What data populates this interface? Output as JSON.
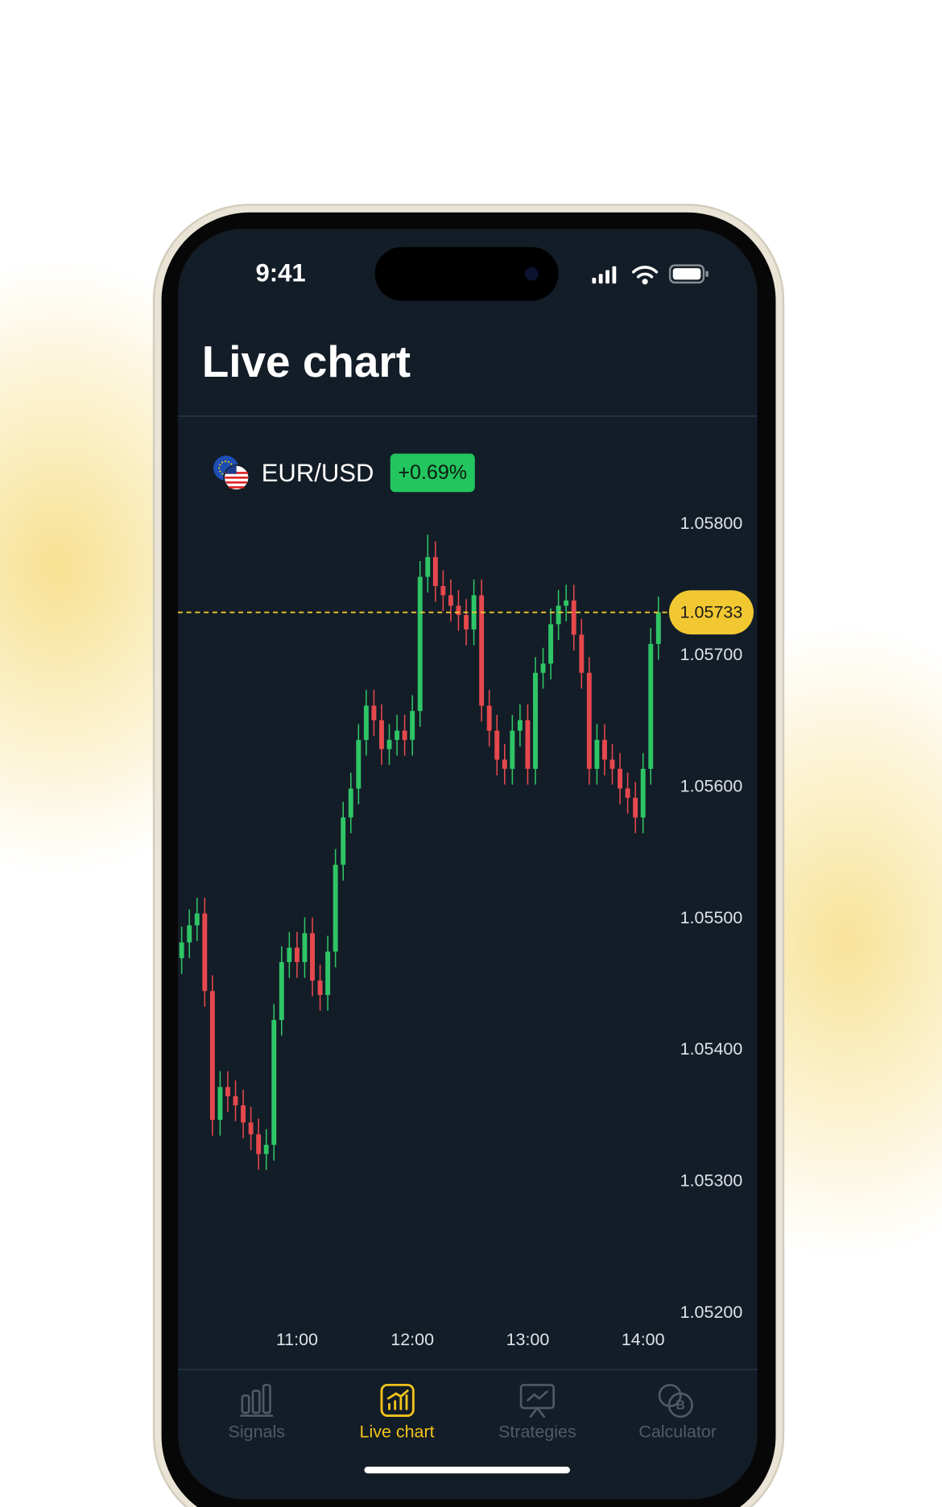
{
  "status_bar": {
    "time": "9:41"
  },
  "header": {
    "title": "Live chart"
  },
  "instrument": {
    "pair": "EUR/USD",
    "change": "+0.69%"
  },
  "chart_data": {
    "type": "candlestick",
    "x": [
      "10:00",
      "10:04",
      "10:08",
      "10:12",
      "10:16",
      "10:20",
      "10:24",
      "10:28",
      "10:32",
      "10:36",
      "10:40",
      "10:44",
      "10:48",
      "10:52",
      "10:56",
      "11:00",
      "11:04",
      "11:08",
      "11:12",
      "11:16",
      "11:20",
      "11:24",
      "11:28",
      "11:32",
      "11:36",
      "11:40",
      "11:44",
      "11:48",
      "11:52",
      "11:56",
      "12:00",
      "12:04",
      "12:08",
      "12:12",
      "12:16",
      "12:20",
      "12:24",
      "12:28",
      "12:32",
      "12:36",
      "12:40",
      "12:44",
      "12:48",
      "12:52",
      "12:56",
      "13:00",
      "13:04",
      "13:08",
      "13:12",
      "13:16",
      "13:20",
      "13:24",
      "13:28",
      "13:32",
      "13:36",
      "13:40",
      "13:44",
      "13:48",
      "13:52",
      "13:56",
      "14:00",
      "14:04",
      "14:08"
    ],
    "open": [
      1.0547,
      1.05482,
      1.05495,
      1.05504,
      1.05445,
      1.05347,
      1.05372,
      1.05365,
      1.05358,
      1.05345,
      1.05336,
      1.05321,
      1.05328,
      1.05423,
      1.05467,
      1.05478,
      1.05467,
      1.05489,
      1.05453,
      1.05442,
      1.05475,
      1.05541,
      1.05577,
      1.05599,
      1.05636,
      1.05662,
      1.05651,
      1.05629,
      1.05636,
      1.05643,
      1.05636,
      1.05658,
      1.0576,
      1.05775,
      1.05753,
      1.05746,
      1.05738,
      1.05731,
      1.0572,
      1.05746,
      1.05662,
      1.05643,
      1.05621,
      1.05614,
      1.05643,
      1.05651,
      1.05614,
      1.05687,
      1.05694,
      1.05724,
      1.05738,
      1.05742,
      1.05716,
      1.05687,
      1.05614,
      1.05636,
      1.05621,
      1.05614,
      1.05599,
      1.05592,
      1.05577,
      1.05614,
      1.05709
    ],
    "high": [
      1.05494,
      1.05507,
      1.05516,
      1.05516,
      1.05457,
      1.05384,
      1.05384,
      1.05377,
      1.0537,
      1.05357,
      1.05348,
      1.0534,
      1.05435,
      1.05479,
      1.0549,
      1.0549,
      1.05501,
      1.05501,
      1.05465,
      1.05487,
      1.05553,
      1.05589,
      1.05611,
      1.05648,
      1.05674,
      1.05674,
      1.05663,
      1.05648,
      1.05655,
      1.05655,
      1.0567,
      1.05772,
      1.05792,
      1.05787,
      1.05765,
      1.05758,
      1.0575,
      1.05743,
      1.05758,
      1.05758,
      1.05674,
      1.05655,
      1.05633,
      1.05655,
      1.05663,
      1.05663,
      1.05699,
      1.05706,
      1.05736,
      1.0575,
      1.05754,
      1.05754,
      1.05728,
      1.05699,
      1.05648,
      1.05648,
      1.05633,
      1.05626,
      1.05611,
      1.05604,
      1.05626,
      1.05721,
      1.05745
    ],
    "low": [
      1.05458,
      1.0547,
      1.05483,
      1.05433,
      1.05335,
      1.05335,
      1.05353,
      1.05346,
      1.05333,
      1.05324,
      1.05309,
      1.05309,
      1.05316,
      1.05411,
      1.05455,
      1.05455,
      1.05455,
      1.05441,
      1.0543,
      1.0543,
      1.05463,
      1.05529,
      1.05565,
      1.05587,
      1.05624,
      1.05639,
      1.05617,
      1.05617,
      1.05624,
      1.05624,
      1.05624,
      1.05646,
      1.05748,
      1.05741,
      1.05734,
      1.05726,
      1.05719,
      1.05708,
      1.05708,
      1.0565,
      1.05631,
      1.05609,
      1.05602,
      1.05602,
      1.05631,
      1.05602,
      1.05602,
      1.05675,
      1.05682,
      1.05712,
      1.05726,
      1.05704,
      1.05675,
      1.05602,
      1.05602,
      1.05609,
      1.05602,
      1.05587,
      1.0558,
      1.05565,
      1.05565,
      1.05602,
      1.05697
    ],
    "close": [
      1.05482,
      1.05495,
      1.05504,
      1.05445,
      1.05347,
      1.05372,
      1.05365,
      1.05358,
      1.05345,
      1.05336,
      1.05321,
      1.05328,
      1.05423,
      1.05467,
      1.05478,
      1.05467,
      1.05489,
      1.05453,
      1.05442,
      1.05475,
      1.05541,
      1.05577,
      1.05599,
      1.05636,
      1.05662,
      1.05651,
      1.05629,
      1.05636,
      1.05643,
      1.05636,
      1.05658,
      1.0576,
      1.05775,
      1.05753,
      1.05746,
      1.05738,
      1.05731,
      1.0572,
      1.05746,
      1.05662,
      1.05643,
      1.05621,
      1.05614,
      1.05643,
      1.05651,
      1.05614,
      1.05687,
      1.05694,
      1.05724,
      1.05738,
      1.05742,
      1.05716,
      1.05687,
      1.05614,
      1.05636,
      1.05621,
      1.05614,
      1.05599,
      1.05592,
      1.05577,
      1.05614,
      1.05709,
      1.05733
    ],
    "up_color": "#2fc566",
    "down_color": "#e5484d",
    "xlim": [
      "10:00",
      "14:12"
    ],
    "xticks": [
      "11:00",
      "12:00",
      "13:00",
      "14:00"
    ],
    "ylim": [
      1.0519,
      1.05804
    ],
    "yticks": [
      {
        "value": 1.052,
        "label": "1.05200"
      },
      {
        "value": 1.053,
        "label": "1.05300"
      },
      {
        "value": 1.054,
        "label": "1.05400"
      },
      {
        "value": 1.055,
        "label": "1.05500"
      },
      {
        "value": 1.056,
        "label": "1.05600"
      },
      {
        "value": 1.057,
        "label": "1.05700"
      },
      {
        "value": 1.058,
        "label": "1.05800"
      }
    ],
    "current_price": {
      "value": 1.05733,
      "label": "1.05733"
    },
    "current_price_color": "#f2c832"
  },
  "tab_bar": {
    "tabs": [
      "Signals",
      "Live chart",
      "Strategies",
      "Calculator"
    ],
    "active": 1,
    "active_color": "#f2c21b",
    "inactive_color": "#4f5a66"
  }
}
